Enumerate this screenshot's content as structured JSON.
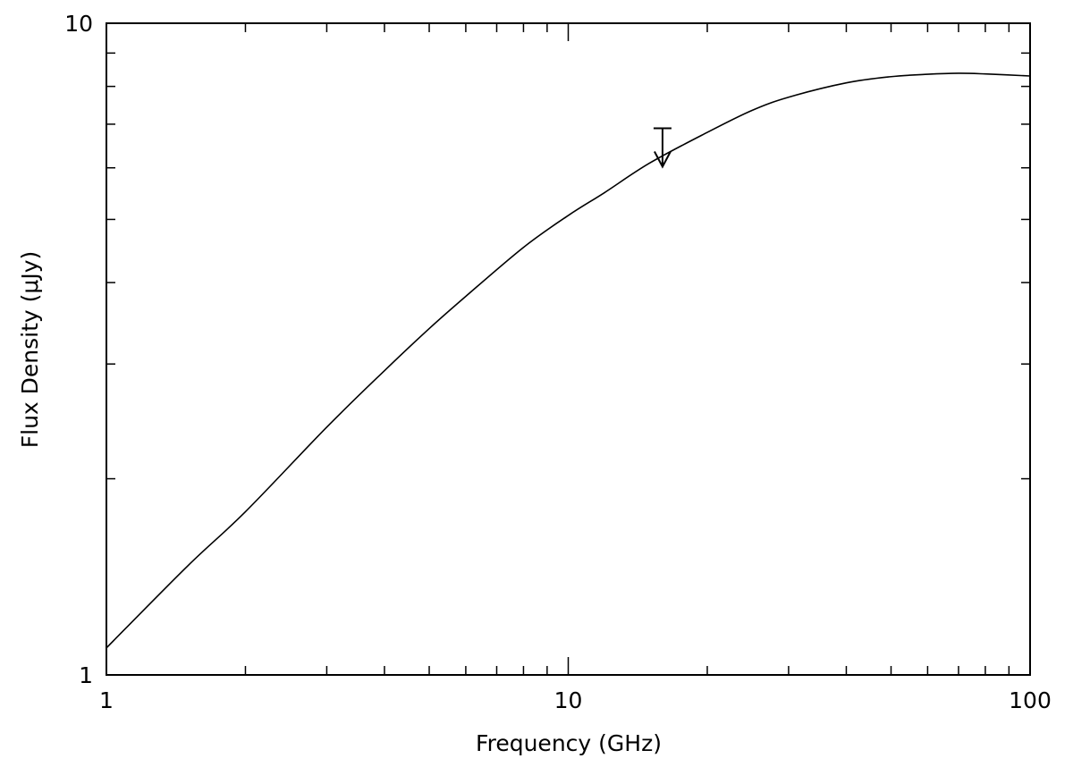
{
  "chart_data": {
    "type": "line",
    "xscale": "log",
    "yscale": "log",
    "xlim": [
      1,
      100
    ],
    "ylim": [
      1,
      10
    ],
    "xlabel": "Frequency (GHz)",
    "ylabel": "Flux Density (μJy)",
    "x_tick_labels": [
      "1",
      "10",
      "100"
    ],
    "y_tick_labels": [
      "1",
      "10"
    ],
    "series": [
      {
        "x": [
          1,
          1.5,
          2,
          3,
          4,
          5,
          6,
          8,
          10,
          12,
          15,
          20,
          25,
          30,
          40,
          50,
          60,
          70,
          80,
          100
        ],
        "y": [
          1.1,
          1.47,
          1.78,
          2.4,
          2.93,
          3.4,
          3.81,
          4.53,
          5.07,
          5.5,
          6.1,
          6.8,
          7.35,
          7.7,
          8.1,
          8.28,
          8.35,
          8.38,
          8.36,
          8.3
        ]
      }
    ],
    "upper_limits": [
      {
        "x": 16,
        "y": 6.9
      }
    ],
    "grid": false,
    "legend": "none"
  }
}
